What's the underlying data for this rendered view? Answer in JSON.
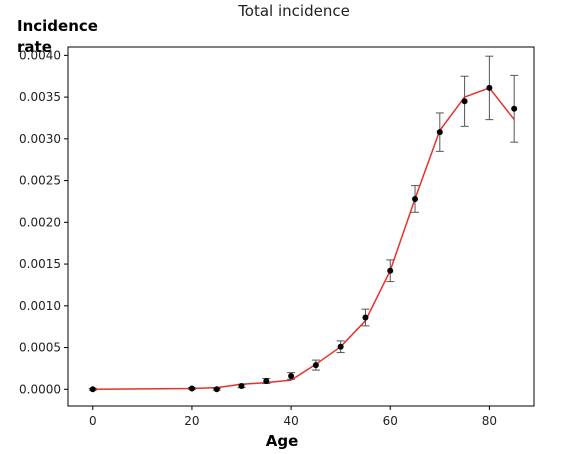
{
  "chart_data": {
    "type": "line",
    "title": "Total incidence",
    "ylabel_lines": [
      "Incidence",
      "rate"
    ],
    "xlabel": "Age",
    "xlim": [
      -5,
      89
    ],
    "ylim": [
      -0.0002,
      0.0041
    ],
    "xticks": [
      0,
      20,
      40,
      60,
      80
    ],
    "xtick_labels": [
      "0",
      "20",
      "40",
      "60",
      "80"
    ],
    "yticks": [
      0,
      0.0005,
      0.001,
      0.0015,
      0.002,
      0.0025,
      0.003,
      0.0035,
      0.004
    ],
    "ytick_labels": [
      "0.0000",
      "0.0005",
      "0.0010",
      "0.0015",
      "0.0020",
      "0.0025",
      "0.0030",
      "0.0035",
      "0.0040"
    ],
    "grid": false,
    "series": [
      {
        "kind": "line",
        "color": "#e8312a",
        "x": [
          0,
          20,
          25,
          30,
          35,
          40,
          45,
          50,
          55,
          60,
          65,
          70,
          75,
          80,
          85
        ],
        "y": [
          0.0,
          1e-05,
          2e-05,
          6e-05,
          8e-05,
          0.00011,
          0.0003,
          0.00051,
          0.00082,
          0.00142,
          0.00228,
          0.0031,
          0.0035,
          0.00361,
          0.00323
        ]
      },
      {
        "kind": "errorbar",
        "color": "#000000",
        "errcolor": "#555555",
        "x": [
          0,
          20,
          25,
          30,
          35,
          40,
          45,
          50,
          55,
          60,
          65,
          70,
          75,
          80,
          85
        ],
        "y": [
          0.0,
          1e-05,
          0.0,
          4e-05,
          0.0001,
          0.00016,
          0.00029,
          0.00051,
          0.00086,
          0.00142,
          0.00228,
          0.00308,
          0.00345,
          0.00361,
          0.00336
        ],
        "yerr": [
          1e-05,
          1e-05,
          1e-05,
          2e-05,
          3e-05,
          4e-05,
          6e-05,
          7e-05,
          0.0001,
          0.00013,
          0.00016,
          0.00023,
          0.0003,
          0.00038,
          0.0004
        ]
      }
    ]
  }
}
